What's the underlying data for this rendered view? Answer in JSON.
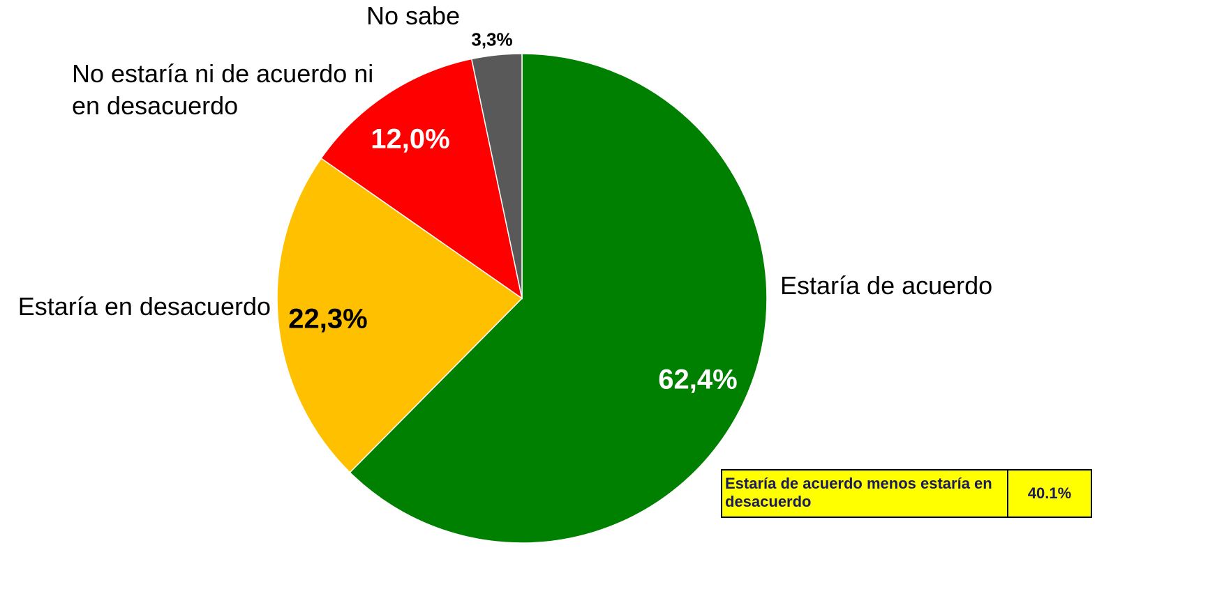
{
  "chart_data": {
    "type": "pie",
    "categories": [
      "Estaría de acuerdo",
      "Estaría en desacuerdo",
      "No estaría ni de acuerdo ni en desacuerdo",
      "No sabe"
    ],
    "values": [
      62.4,
      22.3,
      12.0,
      3.3
    ],
    "value_labels": [
      "62,4%",
      "22,3%",
      "12,0%",
      "3,3%"
    ],
    "colors": [
      "#008000",
      "#ffc000",
      "#ff0000",
      "#595959"
    ],
    "annotation": {
      "label": "Estaría de acuerdo menos estaría en desacuerdo",
      "value": "40.1%"
    }
  }
}
